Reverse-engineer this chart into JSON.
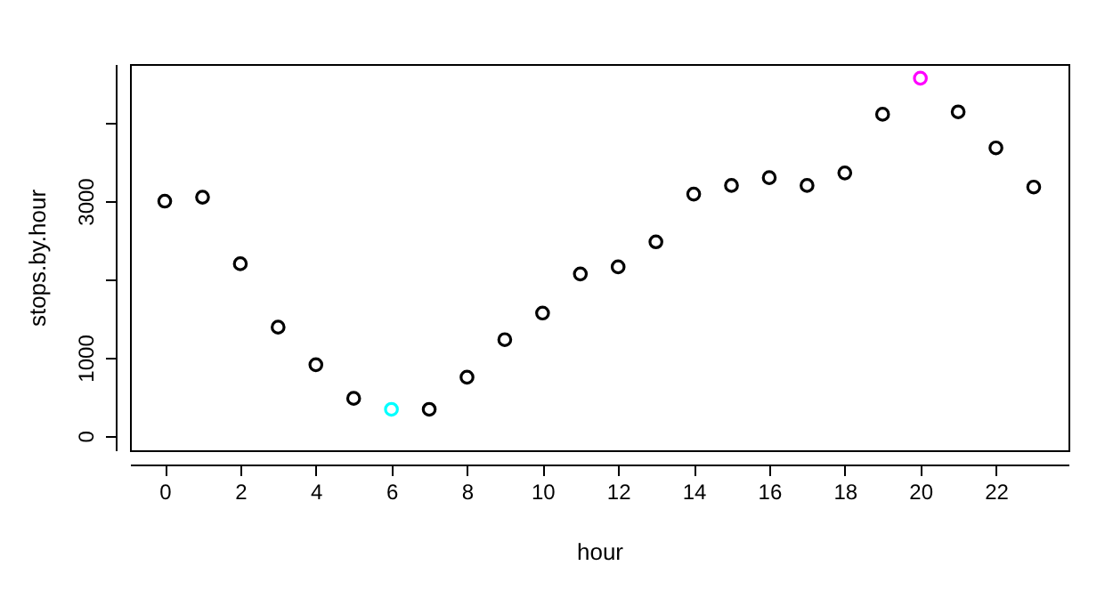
{
  "chart_data": {
    "type": "scatter",
    "xlabel": "hour",
    "ylabel": "stops.by.hour",
    "x": [
      0,
      1,
      2,
      3,
      4,
      5,
      6,
      7,
      8,
      9,
      10,
      11,
      12,
      13,
      14,
      15,
      16,
      17,
      18,
      19,
      20,
      21,
      22,
      23
    ],
    "values": [
      3000,
      3050,
      2200,
      1390,
      910,
      480,
      340,
      340,
      750,
      1230,
      1570,
      2070,
      2160,
      2480,
      3090,
      3200,
      3300,
      3200,
      3360,
      4110,
      4570,
      4140,
      3680,
      3180
    ],
    "colors": [
      "#000000",
      "#000000",
      "#000000",
      "#000000",
      "#000000",
      "#000000",
      "#00ffff",
      "#000000",
      "#000000",
      "#000000",
      "#000000",
      "#000000",
      "#000000",
      "#000000",
      "#000000",
      "#000000",
      "#000000",
      "#000000",
      "#000000",
      "#000000",
      "#ff00ff",
      "#000000",
      "#000000",
      "#000000"
    ],
    "xlim": [
      -0.92,
      23.92
    ],
    "xticks": [
      0,
      2,
      4,
      6,
      8,
      10,
      12,
      14,
      16,
      18,
      20,
      22
    ],
    "ylim": [
      -183,
      4751
    ],
    "yticks": [
      0,
      1000,
      {
        "value": 2000,
        "label": null
      },
      3000,
      {
        "value": 4000,
        "label": null
      }
    ],
    "marker": "circle",
    "grid": false
  }
}
